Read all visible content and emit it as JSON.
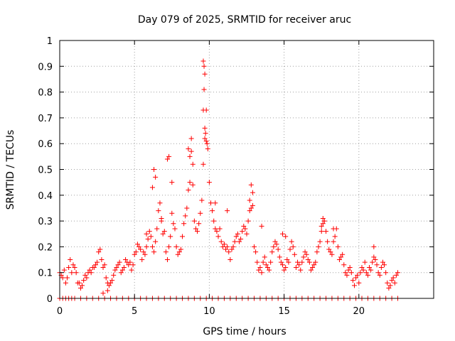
{
  "chart_data": {
    "type": "scatter",
    "title": "Day 079 of 2025, SRMTID for receiver aruc",
    "xlabel": "GPS time / hours",
    "ylabel": "SRMTID / TECUs",
    "xlim": [
      0,
      25
    ],
    "ylim": [
      0,
      1
    ],
    "xticks": [
      0,
      5,
      10,
      15,
      20
    ],
    "yticks": [
      0,
      0.1,
      0.2,
      0.3,
      0.4,
      0.5,
      0.6,
      0.7,
      0.8,
      0.9,
      1
    ],
    "ytick_labels": [
      "0",
      "0.1",
      "0.2",
      "0.3",
      "0.4",
      "0.5",
      "0.6",
      "0.7",
      "0.8",
      "0.9",
      "1"
    ],
    "grid": true,
    "marker": "+",
    "series_color": "#ff0000",
    "series": [
      {
        "name": "SRMTID",
        "x": [
          0.0,
          0.1,
          0.2,
          0.3,
          0.4,
          0.5,
          0.6,
          0.7,
          0.8,
          0.9,
          1.0,
          1.1,
          1.2,
          1.3,
          1.4,
          1.5,
          1.6,
          1.7,
          1.8,
          1.9,
          2.0,
          2.1,
          2.2,
          2.3,
          2.4,
          2.5,
          2.6,
          2.7,
          2.8,
          2.9,
          3.0,
          3.1,
          3.2,
          3.3,
          3.4,
          3.5,
          3.6,
          3.7,
          3.8,
          3.9,
          4.0,
          4.1,
          4.2,
          4.3,
          4.4,
          4.5,
          4.6,
          4.7,
          4.8,
          4.9,
          5.0,
          5.1,
          5.2,
          5.3,
          5.4,
          5.5,
          5.6,
          5.7,
          5.8,
          5.9,
          6.0,
          6.1,
          6.2,
          6.3,
          6.4,
          6.5,
          6.6,
          6.7,
          6.8,
          6.9,
          7.0,
          7.1,
          7.2,
          7.3,
          7.4,
          7.5,
          7.6,
          7.7,
          7.8,
          7.9,
          8.0,
          8.1,
          8.2,
          8.3,
          8.4,
          8.5,
          8.6,
          8.7,
          8.8,
          8.9,
          9.0,
          9.1,
          9.2,
          9.3,
          9.4,
          9.5,
          9.6,
          9.7,
          9.8,
          9.9,
          10.0,
          10.1,
          10.2,
          10.3,
          10.4,
          10.5,
          10.6,
          10.7,
          10.8,
          10.9,
          11.0,
          11.1,
          11.2,
          11.3,
          11.4,
          11.5,
          11.6,
          11.7,
          11.8,
          11.9,
          12.0,
          12.1,
          12.2,
          12.3,
          12.4,
          12.5,
          12.6,
          12.7,
          12.8,
          12.9,
          13.0,
          13.1,
          13.2,
          13.3,
          13.4,
          13.5,
          13.6,
          13.7,
          13.8,
          13.9,
          14.0,
          14.1,
          14.2,
          14.3,
          14.4,
          14.5,
          14.6,
          14.7,
          14.8,
          14.9,
          15.0,
          15.1,
          15.2,
          15.3,
          15.4,
          15.5,
          15.6,
          15.7,
          15.8,
          15.9,
          16.0,
          16.1,
          16.2,
          16.3,
          16.4,
          16.5,
          16.6,
          16.7,
          16.8,
          16.9,
          17.0,
          17.1,
          17.2,
          17.3,
          17.4,
          17.5,
          17.6,
          17.7,
          17.8,
          17.9,
          18.0,
          18.1,
          18.2,
          18.3,
          18.4,
          18.5,
          18.6,
          18.7,
          18.8,
          18.9,
          19.0,
          19.1,
          19.2,
          19.3,
          19.4,
          19.5,
          19.6,
          19.7,
          19.8,
          19.9,
          20.0,
          20.1,
          20.2,
          20.3,
          20.4,
          20.5,
          20.6,
          20.7,
          20.8,
          20.9,
          21.0,
          21.1,
          21.2,
          21.3,
          21.4,
          21.5,
          21.6,
          21.7,
          21.8,
          21.9,
          22.0,
          22.1,
          22.2,
          22.3,
          22.4,
          22.5,
          22.6,
          0.0,
          0.2,
          0.4,
          0.6,
          0.8,
          1.0,
          1.4,
          1.8,
          2.2,
          2.6,
          3.0,
          3.4,
          3.8,
          4.2,
          4.6,
          5.0,
          5.4,
          5.8,
          6.2,
          6.6,
          7.0,
          7.4,
          7.8,
          8.2,
          8.6,
          9.0,
          9.4,
          9.8,
          10.2,
          10.6,
          11.0,
          11.4,
          11.8,
          12.2,
          12.6,
          13.0,
          13.4,
          13.8,
          14.2,
          14.6,
          15.0,
          15.4,
          15.8,
          16.2,
          16.6,
          17.0,
          17.4,
          17.8,
          18.2,
          18.6,
          19.0,
          19.4,
          19.8,
          20.2,
          20.6,
          21.0,
          21.4,
          21.8,
          22.2,
          22.6,
          9.6,
          9.65,
          9.7,
          9.65,
          9.6,
          9.7,
          9.75,
          9.8,
          9.85,
          8.8,
          8.9,
          8.6,
          8.7,
          7.2,
          7.3,
          6.3,
          6.4,
          6.2,
          12.8,
          12.7,
          12.9,
          17.6,
          17.5,
          18.3,
          21.0,
          13.5,
          14.9,
          15.1,
          10.4,
          11.2,
          5.8,
          7.5,
          6.8,
          3.2,
          2.9
        ],
        "y": [
          0.1,
          0.09,
          0.08,
          0.11,
          0.06,
          0.08,
          0.12,
          0.15,
          0.1,
          0.13,
          0.12,
          0.1,
          0.06,
          0.06,
          0.04,
          0.05,
          0.07,
          0.09,
          0.08,
          0.1,
          0.11,
          0.1,
          0.12,
          0.12,
          0.13,
          0.14,
          0.18,
          0.19,
          0.15,
          0.12,
          0.13,
          0.08,
          0.06,
          0.05,
          0.06,
          0.07,
          0.09,
          0.11,
          0.12,
          0.13,
          0.14,
          0.1,
          0.11,
          0.12,
          0.15,
          0.14,
          0.13,
          0.14,
          0.11,
          0.13,
          0.17,
          0.18,
          0.21,
          0.2,
          0.19,
          0.15,
          0.18,
          0.17,
          0.2,
          0.23,
          0.26,
          0.24,
          0.2,
          0.18,
          0.22,
          0.27,
          0.34,
          0.37,
          0.31,
          0.25,
          0.26,
          0.18,
          0.15,
          0.2,
          0.24,
          0.33,
          0.29,
          0.27,
          0.2,
          0.17,
          0.18,
          0.19,
          0.24,
          0.29,
          0.32,
          0.35,
          0.42,
          0.55,
          0.62,
          0.44,
          0.3,
          0.27,
          0.26,
          0.29,
          0.33,
          0.38,
          0.52,
          0.62,
          0.73,
          0.58,
          0.45,
          0.37,
          0.34,
          0.3,
          0.27,
          0.26,
          0.24,
          0.27,
          0.22,
          0.2,
          0.21,
          0.19,
          0.2,
          0.18,
          0.15,
          0.19,
          0.2,
          0.22,
          0.24,
          0.25,
          0.22,
          0.23,
          0.26,
          0.28,
          0.27,
          0.25,
          0.3,
          0.34,
          0.35,
          0.41,
          0.2,
          0.18,
          0.14,
          0.11,
          0.12,
          0.1,
          0.14,
          0.16,
          0.13,
          0.12,
          0.11,
          0.14,
          0.18,
          0.2,
          0.22,
          0.21,
          0.19,
          0.16,
          0.14,
          0.13,
          0.11,
          0.12,
          0.15,
          0.14,
          0.19,
          0.22,
          0.2,
          0.17,
          0.12,
          0.14,
          0.13,
          0.11,
          0.14,
          0.16,
          0.18,
          0.17,
          0.15,
          0.14,
          0.11,
          0.12,
          0.13,
          0.14,
          0.18,
          0.2,
          0.22,
          0.26,
          0.29,
          0.3,
          0.26,
          0.22,
          0.19,
          0.18,
          0.17,
          0.22,
          0.24,
          0.27,
          0.2,
          0.15,
          0.16,
          0.17,
          0.13,
          0.1,
          0.09,
          0.11,
          0.12,
          0.1,
          0.07,
          0.05,
          0.08,
          0.09,
          0.06,
          0.1,
          0.12,
          0.11,
          0.14,
          0.1,
          0.09,
          0.12,
          0.11,
          0.14,
          0.16,
          0.15,
          0.13,
          0.1,
          0.09,
          0.12,
          0.14,
          0.13,
          0.1,
          0.06,
          0.04,
          0.05,
          0.07,
          0.08,
          0.06,
          0.09,
          0.1,
          0,
          0,
          0,
          0,
          0,
          0,
          0,
          0,
          0,
          0,
          0,
          0,
          0,
          0,
          0,
          0,
          0,
          0,
          0,
          0,
          0,
          0,
          0,
          0,
          0,
          0,
          0,
          0,
          0,
          0,
          0,
          0,
          0,
          0,
          0,
          0,
          0,
          0,
          0,
          0,
          0,
          0,
          0,
          0,
          0,
          0,
          0,
          0,
          0,
          0,
          0,
          0,
          0,
          0,
          0,
          0,
          0,
          0,
          0,
          0,
          0.92,
          0.9,
          0.87,
          0.81,
          0.73,
          0.66,
          0.64,
          0.61,
          0.6,
          0.57,
          0.52,
          0.58,
          0.45,
          0.54,
          0.55,
          0.5,
          0.47,
          0.43,
          0.44,
          0.38,
          0.36,
          0.31,
          0.28,
          0.27,
          0.2,
          0.28,
          0.25,
          0.24,
          0.37,
          0.34,
          0.25,
          0.45,
          0.3,
          0.03,
          0.02
        ]
      }
    ]
  }
}
